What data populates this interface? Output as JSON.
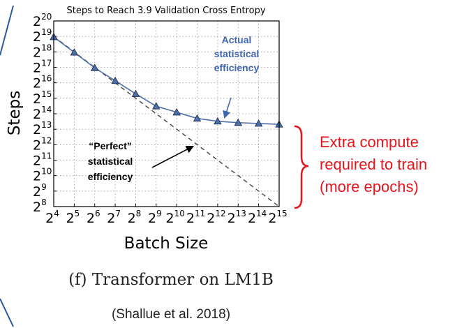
{
  "chart_data": {
    "type": "line",
    "title": "Steps to Reach 3.9 Validation Cross Entropy",
    "xlabel": "Batch Size",
    "ylabel": "Steps",
    "x_scale": "log2",
    "y_scale": "log2",
    "xlim": [
      16,
      32768
    ],
    "ylim": [
      256,
      1048576
    ],
    "x_ticks": [
      {
        "value": 16,
        "base": "2",
        "exp": "4"
      },
      {
        "value": 32,
        "base": "2",
        "exp": "5"
      },
      {
        "value": 64,
        "base": "2",
        "exp": "6"
      },
      {
        "value": 128,
        "base": "2",
        "exp": "7"
      },
      {
        "value": 256,
        "base": "2",
        "exp": "8"
      },
      {
        "value": 512,
        "base": "2",
        "exp": "9"
      },
      {
        "value": 1024,
        "base": "2",
        "exp": "10"
      },
      {
        "value": 2048,
        "base": "2",
        "exp": "11"
      },
      {
        "value": 4096,
        "base": "2",
        "exp": "12"
      },
      {
        "value": 8192,
        "base": "2",
        "exp": "13"
      },
      {
        "value": 16384,
        "base": "2",
        "exp": "14"
      },
      {
        "value": 32768,
        "base": "2",
        "exp": "15"
      }
    ],
    "y_ticks": [
      {
        "value": 256,
        "base": "2",
        "exp": "8"
      },
      {
        "value": 512,
        "base": "2",
        "exp": "9"
      },
      {
        "value": 1024,
        "base": "2",
        "exp": "10"
      },
      {
        "value": 2048,
        "base": "2",
        "exp": "11"
      },
      {
        "value": 4096,
        "base": "2",
        "exp": "12"
      },
      {
        "value": 8192,
        "base": "2",
        "exp": "13"
      },
      {
        "value": 16384,
        "base": "2",
        "exp": "14"
      },
      {
        "value": 32768,
        "base": "2",
        "exp": "15"
      },
      {
        "value": 65536,
        "base": "2",
        "exp": "16"
      },
      {
        "value": 131072,
        "base": "2",
        "exp": "17"
      },
      {
        "value": 262144,
        "base": "2",
        "exp": "18"
      },
      {
        "value": 524288,
        "base": "2",
        "exp": "19"
      },
      {
        "value": 1048576,
        "base": "2",
        "exp": "20"
      }
    ],
    "grid": true,
    "series": [
      {
        "name": "Actual statistical efficiency",
        "color": "#4f6fa8",
        "marker": "triangle",
        "x": [
          16,
          32,
          64,
          128,
          256,
          512,
          1024,
          2048,
          4096,
          8192,
          16384,
          32768
        ],
        "y": [
          512000,
          256000,
          128000,
          72000,
          40000,
          23000,
          17500,
          13300,
          11700,
          11000,
          10600,
          10200
        ]
      },
      {
        "name": "“Perfect” statistical efficiency",
        "color": "#444444",
        "style": "dashed",
        "x": [
          16,
          32768
        ],
        "y": [
          524288,
          256
        ]
      }
    ],
    "annotations": [
      {
        "id": "actual",
        "lines": [
          "Actual",
          "statistical",
          "efficiency"
        ],
        "color": "#3f66b0"
      },
      {
        "id": "perfect",
        "lines": [
          "“Perfect”",
          "statistical",
          "efficiency"
        ],
        "color": "#000000"
      },
      {
        "id": "extra",
        "lines": [
          "Extra compute",
          "required to train",
          "(more epochs)"
        ],
        "color": "#e8141c"
      }
    ]
  },
  "caption": "(f) Transformer on LM1B",
  "citation": "(Shallue et al. 2018)"
}
